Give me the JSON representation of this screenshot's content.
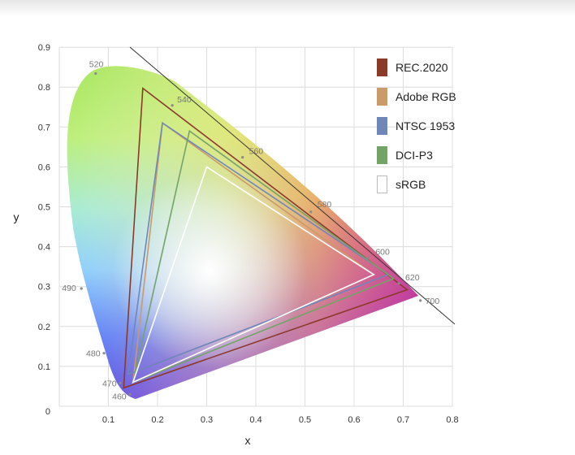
{
  "chart_data": {
    "type": "scatter",
    "xlabel": "x",
    "ylabel": "y",
    "xlim": [
      0,
      0.8
    ],
    "ylim": [
      0,
      0.9
    ],
    "xticks": [
      "0.1",
      "0.2",
      "0.3",
      "0.4",
      "0.5",
      "0.6",
      "0.7",
      "0.8"
    ],
    "yticks": [
      "0",
      "0.1",
      "0.2",
      "0.3",
      "0.4",
      "0.5",
      "0.6",
      "0.7",
      "0.8",
      "0.9"
    ],
    "grid": true,
    "legend_position": "top-right",
    "spectral_locus_labels": [
      {
        "nm": "460",
        "x": 0.144,
        "y": 0.03
      },
      {
        "nm": "470",
        "x": 0.124,
        "y": 0.058
      },
      {
        "nm": "480",
        "x": 0.091,
        "y": 0.133
      },
      {
        "nm": "490",
        "x": 0.045,
        "y": 0.295
      },
      {
        "nm": "520",
        "x": 0.074,
        "y": 0.834
      },
      {
        "nm": "540",
        "x": 0.23,
        "y": 0.754
      },
      {
        "nm": "560",
        "x": 0.373,
        "y": 0.624
      },
      {
        "nm": "580",
        "x": 0.512,
        "y": 0.487
      },
      {
        "nm": "600",
        "x": 0.627,
        "y": 0.372
      },
      {
        "nm": "620",
        "x": 0.691,
        "y": 0.308
      },
      {
        "nm": "700",
        "x": 0.735,
        "y": 0.265
      }
    ],
    "series": [
      {
        "name": "REC.2020",
        "color": "#8b3a2a",
        "points": [
          [
            0.708,
            0.292
          ],
          [
            0.17,
            0.797
          ],
          [
            0.131,
            0.046
          ]
        ]
      },
      {
        "name": "Adobe RGB",
        "color": "#c99a6a",
        "points": [
          [
            0.64,
            0.33
          ],
          [
            0.21,
            0.71
          ],
          [
            0.15,
            0.06
          ]
        ]
      },
      {
        "name": "NTSC 1953",
        "color": "#6f86b8",
        "points": [
          [
            0.67,
            0.33
          ],
          [
            0.21,
            0.71
          ],
          [
            0.14,
            0.08
          ]
        ]
      },
      {
        "name": "DCI-P3",
        "color": "#74a368",
        "points": [
          [
            0.68,
            0.32
          ],
          [
            0.265,
            0.69
          ],
          [
            0.15,
            0.06
          ]
        ]
      },
      {
        "name": "sRGB",
        "color": "#ffffff",
        "points": [
          [
            0.64,
            0.33
          ],
          [
            0.3,
            0.6
          ],
          [
            0.15,
            0.06
          ]
        ]
      }
    ]
  }
}
